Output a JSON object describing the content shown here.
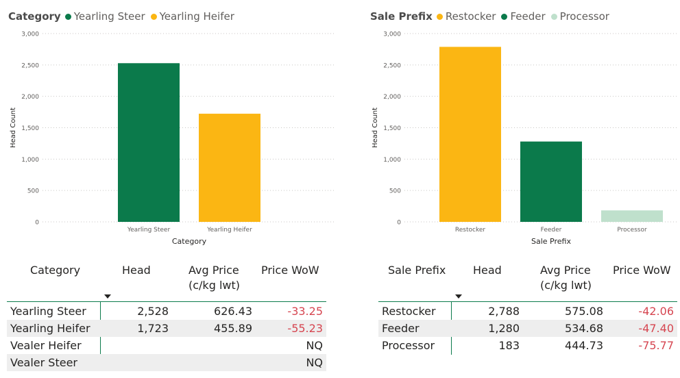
{
  "colors": {
    "yearling_steer": "#0b7a4b",
    "yearling_heifer": "#fbb613",
    "restocker": "#fbb613",
    "feeder": "#0b7a4b",
    "processor": "#bfe0cc",
    "negative": "#d64550",
    "divider": "#0b7a4b"
  },
  "chart_data": [
    {
      "type": "bar",
      "legend_title": "Category",
      "categories": [
        "Yearling Steer",
        "Yearling Heifer"
      ],
      "values": [
        2528,
        1723
      ],
      "colors": [
        "#0b7a4b",
        "#fbb613"
      ],
      "xlabel": "Category",
      "ylabel": "Head Count",
      "ylim": [
        0,
        3000
      ],
      "yticks": [
        "3,000",
        "2,500",
        "2,000",
        "1,500",
        "1,000",
        "500",
        "0"
      ],
      "grid": true,
      "legend": "top-left"
    },
    {
      "type": "bar",
      "legend_title": "Sale Prefix",
      "categories": [
        "Restocker",
        "Feeder",
        "Processor"
      ],
      "values": [
        2788,
        1280,
        183
      ],
      "colors": [
        "#fbb613",
        "#0b7a4b",
        "#bfe0cc"
      ],
      "xlabel": "Sale Prefix",
      "ylabel": "Head Count",
      "ylim": [
        0,
        3000
      ],
      "yticks": [
        "3,000",
        "2,500",
        "2,000",
        "1,500",
        "1,000",
        "500",
        "0"
      ],
      "grid": true,
      "legend": "top-left"
    }
  ],
  "table1": {
    "headers": [
      "Category",
      "Head",
      "Avg Price\n(c/kg lwt)",
      "Price WoW"
    ],
    "rows": [
      [
        "Yearling Steer",
        "2,528",
        "626.43",
        "-33.25"
      ],
      [
        "Yearling Heifer",
        "1,723",
        "455.89",
        "-55.23"
      ],
      [
        "Vealer Heifer",
        "",
        "",
        "NQ"
      ],
      [
        "Vealer Steer",
        "",
        "",
        "NQ"
      ]
    ]
  },
  "table2": {
    "headers": [
      "Sale Prefix",
      "Head",
      "Avg Price\n(c/kg lwt)",
      "Price WoW"
    ],
    "rows": [
      [
        "Restocker",
        "2,788",
        "575.08",
        "-42.06"
      ],
      [
        "Feeder",
        "1,280",
        "534.68",
        "-47.40"
      ],
      [
        "Processor",
        "183",
        "444.73",
        "-75.77"
      ]
    ]
  }
}
